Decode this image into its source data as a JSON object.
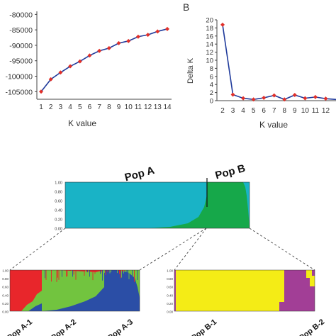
{
  "colors": {
    "line_blue": "#1f3a9b",
    "point_red": "#e0302a",
    "axis": "#444444",
    "popA_teal": "#19b3c6",
    "popB_green": "#16a84a",
    "sub_red": "#e8262b",
    "sub_green": "#72c43f",
    "sub_blue": "#2b4ea6",
    "yellow": "#f4ec16",
    "purple": "#a23e96"
  },
  "chart_data": [
    {
      "type": "line",
      "title": "",
      "xlabel": "K value",
      "ylabel": "",
      "x": [
        1,
        2,
        3,
        4,
        5,
        6,
        7,
        8,
        9,
        10,
        11,
        12,
        13,
        14
      ],
      "y": [
        -105000,
        -101000,
        -98800,
        -96800,
        -95200,
        -93300,
        -91800,
        -90900,
        -89300,
        -88600,
        -87200,
        -86600,
        -85500,
        -84700
      ],
      "ylim": [
        -107000,
        -79000
      ],
      "yticks": [
        -80000,
        -85000,
        -90000,
        -95000,
        -100000,
        -105000
      ],
      "yticklabels": [
        "-80000",
        "-85000",
        "-90000",
        "-95000",
        "-100000",
        "-105000"
      ],
      "xticklabels": [
        "1",
        "2",
        "3",
        "4",
        "5",
        "6",
        "7",
        "8",
        "9",
        "10",
        "11",
        "12",
        "13",
        "14"
      ],
      "grid": false
    },
    {
      "type": "line",
      "panel_label": "B",
      "title": "",
      "xlabel": "K value",
      "ylabel": "Delta K",
      "x": [
        2,
        3,
        4,
        5,
        6,
        7,
        8,
        9,
        10,
        11,
        12,
        13
      ],
      "y": [
        18.8,
        1.5,
        0.6,
        0.3,
        0.7,
        1.3,
        0.3,
        1.4,
        0.6,
        0.9,
        0.5,
        0.3
      ],
      "ylim": [
        0,
        20
      ],
      "yticks": [
        0,
        2,
        4,
        6,
        8,
        10,
        12,
        14,
        16,
        18,
        20
      ],
      "yticklabels": [
        "0",
        "2",
        "4",
        "6",
        "8",
        "10",
        "12",
        "14",
        "16",
        "18",
        "20"
      ],
      "xticklabels": [
        "2",
        "3",
        "4",
        "5",
        "6",
        "7",
        "8",
        "9",
        "10",
        "11",
        "12"
      ],
      "grid": false
    },
    {
      "type": "bar",
      "subtype": "stacked-structure-plot",
      "k": 2,
      "yticklabels": [
        "1.00",
        "0.80",
        "0.60",
        "0.40",
        "0.20",
        "0.00"
      ],
      "groups": [
        "Pop A",
        "Pop B"
      ],
      "group_boundary": 0.87
    },
    {
      "type": "bar",
      "subtype": "stacked-structure-plot",
      "k": 3,
      "yticklabels": [
        "1.00",
        "0.80",
        "0.60",
        "0.40",
        "0.20",
        "0.00"
      ],
      "groups": [
        "Pop A-1",
        "Pop A-2",
        "Pop A-3"
      ]
    },
    {
      "type": "bar",
      "subtype": "stacked-structure-plot",
      "k": 2,
      "yticklabels": [
        "1.00",
        "0.80",
        "0.60",
        "0.40",
        "0.20",
        "0.00"
      ],
      "groups": [
        "Pop B-1",
        "Pop B-2"
      ]
    }
  ],
  "labels": {
    "panel_b": "B",
    "xlabel_left": "K value",
    "xlabel_right": "K value",
    "ylabel_right": "Delta K",
    "pop_a": "Pop A",
    "pop_b": "Pop B",
    "pop_a1": "Pop A-1",
    "pop_a2": "Pop A-2",
    "pop_a3": "Pop A-3",
    "pop_b1": "Pop B-1",
    "pop_b2": "Pop B-2"
  }
}
